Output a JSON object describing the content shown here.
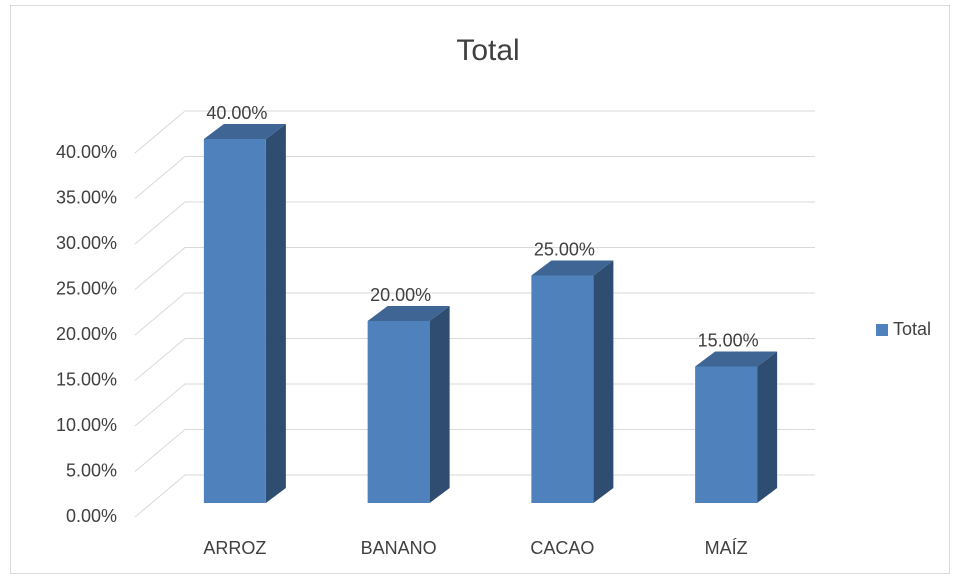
{
  "chart_data": {
    "type": "bar3d",
    "title": "Total",
    "categories": [
      "ARROZ",
      "BANANO",
      "CACAO",
      "MAÍZ"
    ],
    "series": [
      {
        "name": "Total",
        "color": "#4f81bd",
        "values": [
          40,
          20,
          25,
          15
        ],
        "value_labels": [
          "40.00%",
          "20.00%",
          "25.00%",
          "15.00%"
        ]
      }
    ],
    "ylim": [
      0,
      40
    ],
    "yticks": [
      {
        "value": 0,
        "label": "0.00%"
      },
      {
        "value": 5,
        "label": "5.00%"
      },
      {
        "value": 10,
        "label": "10.00%"
      },
      {
        "value": 15,
        "label": "15.00%"
      },
      {
        "value": 20,
        "label": "20.00%"
      },
      {
        "value": 25,
        "label": "25.00%"
      },
      {
        "value": 30,
        "label": "30.00%"
      },
      {
        "value": 35,
        "label": "35.00%"
      },
      {
        "value": 40,
        "label": "40.00%"
      }
    ],
    "grid": true,
    "legend": "right"
  }
}
